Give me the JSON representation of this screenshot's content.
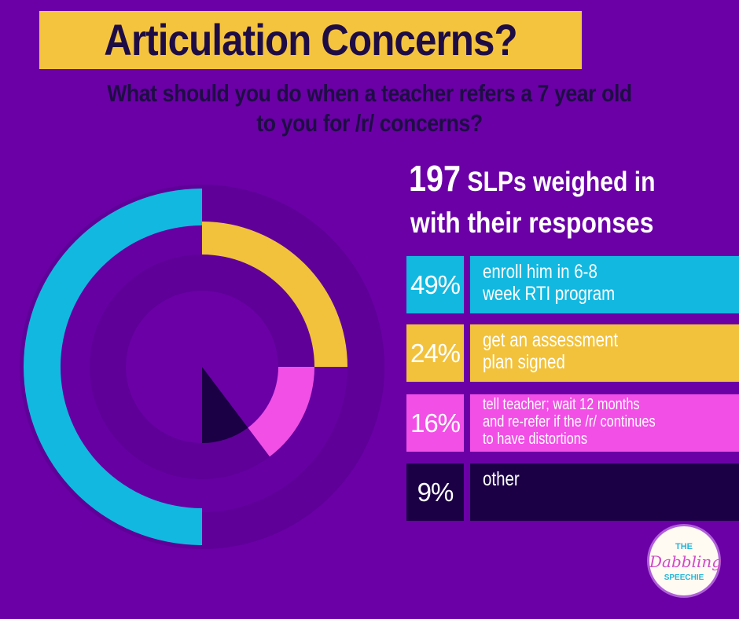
{
  "header": {
    "title": "Articulation Concerns?",
    "subtitle_line1": "What should you do when a teacher refers a 7 year old",
    "subtitle_line2": "to you for /r/ concerns?"
  },
  "summary": {
    "count": "197",
    "line1_rest": "SLPs weighed in",
    "line2": "with their responses"
  },
  "chart_data": {
    "type": "pie",
    "title": "What should you do when a teacher refers a 7 year old to you for /r/ concerns?",
    "categories": [
      "enroll him in 6-8 week RTI program",
      "get an assessment plan signed",
      "tell teacher; wait 12 months and re-refer if the /r/ continues to have distortions",
      "other"
    ],
    "values": [
      49,
      24,
      16,
      9
    ],
    "unit": "%",
    "colors": [
      "#12b8e0",
      "#f2c23c",
      "#f14fe6",
      "#1b0045"
    ]
  },
  "legend": [
    {
      "pct": "49%",
      "label": "enroll him in 6-8\nweek RTI program"
    },
    {
      "pct": "24%",
      "label": "get an assessment\nplan signed"
    },
    {
      "pct": "16%",
      "label": "tell teacher; wait 12 months\nand re-refer if the /r/ continues\nto have distortions"
    },
    {
      "pct": "9%",
      "label": "other"
    }
  ],
  "logo": {
    "line1": "THE",
    "line2": "Dabbling",
    "line3": "SPEECHIE"
  }
}
